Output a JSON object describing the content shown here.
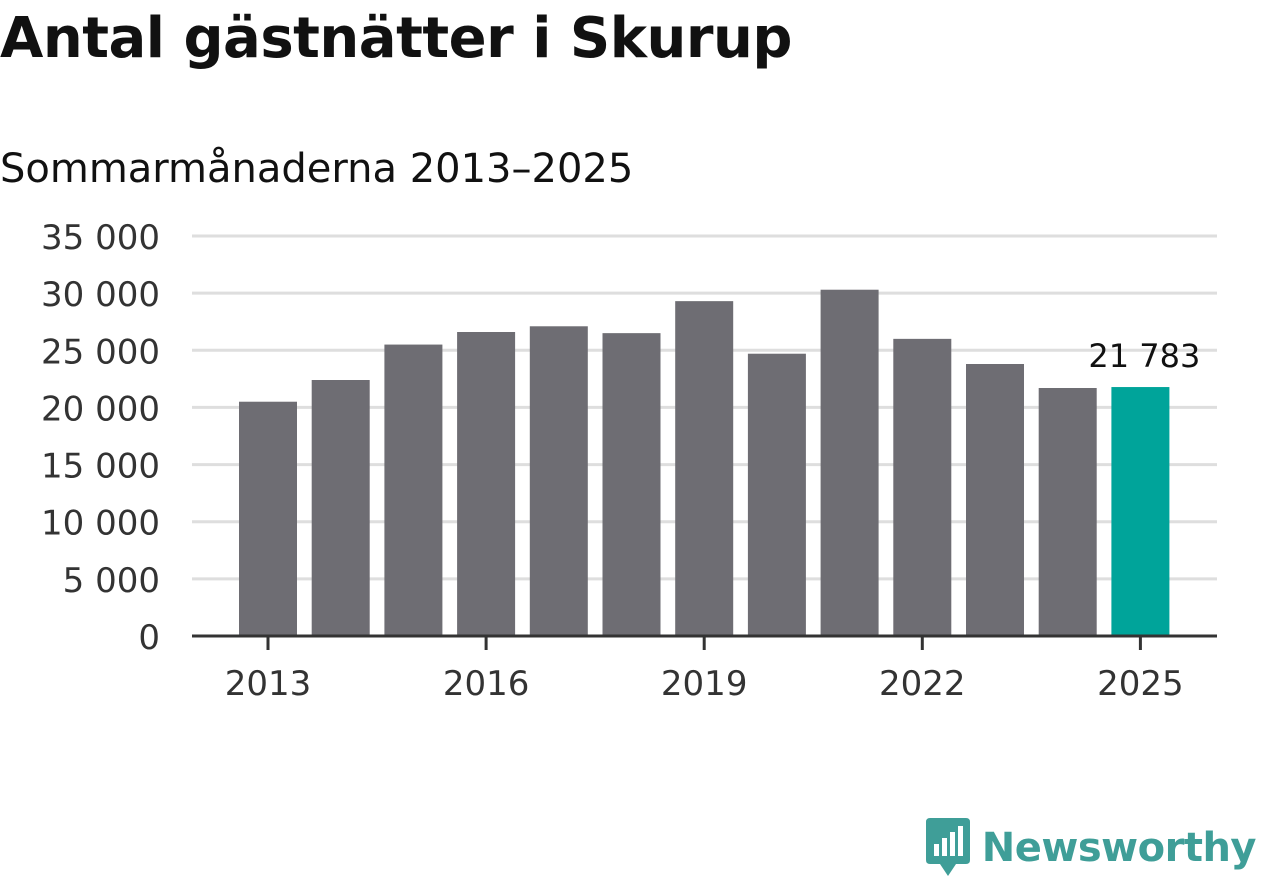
{
  "title": "Antal gästnätter i Skurup",
  "subtitle": "Sommarmånaderna 2013–2025",
  "brand": "Newsworthy",
  "colors": {
    "bar": "#6e6d73",
    "highlight": "#00a49a",
    "grid": "#dedede",
    "axis": "#333333",
    "brand": "#3f9e98"
  },
  "chart_data": {
    "type": "bar",
    "categories": [
      "2013",
      "2014",
      "2015",
      "2016",
      "2017",
      "2018",
      "2019",
      "2020",
      "2021",
      "2022",
      "2023",
      "2024",
      "2025"
    ],
    "values": [
      20500,
      22400,
      25500,
      26600,
      27100,
      26500,
      29300,
      24700,
      30300,
      26000,
      23800,
      21700,
      21783
    ],
    "x_tick_labels": [
      "2013",
      "2016",
      "2019",
      "2022",
      "2025"
    ],
    "y_ticks": [
      0,
      5000,
      10000,
      15000,
      20000,
      25000,
      30000,
      35000
    ],
    "y_tick_labels": [
      "0",
      "5 000",
      "10 000",
      "15 000",
      "20 000",
      "25 000",
      "30 000",
      "35 000"
    ],
    "ylim": [
      0,
      35000
    ],
    "highlight_category": "2025",
    "highlight_label": "21 783",
    "grid": true,
    "xlabel": "",
    "ylabel": ""
  }
}
